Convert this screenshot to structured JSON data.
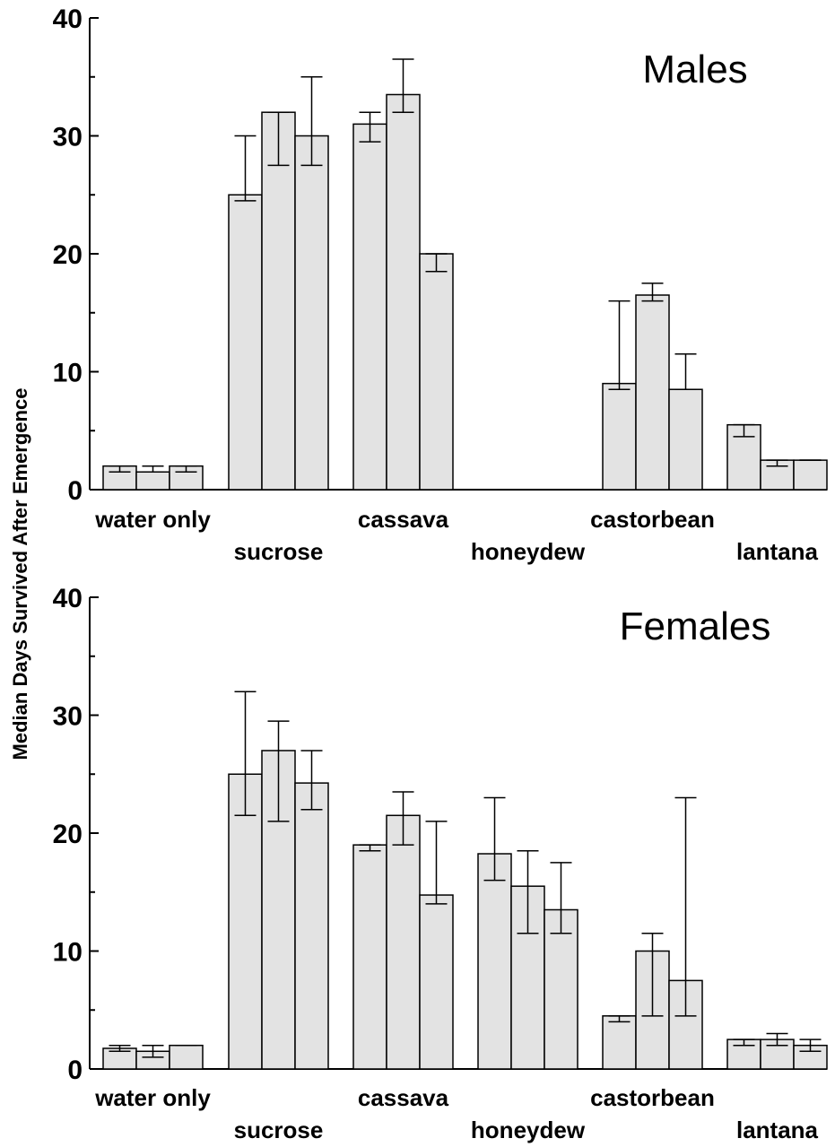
{
  "ylabel": "Median Days Survived After Emergence",
  "colors": {
    "bar_fill": "#e3e3e3",
    "outline": "#000000"
  },
  "chart_data": [
    {
      "type": "bar",
      "title": "Males",
      "ylim": [
        0,
        40
      ],
      "yticks": [
        "0",
        "10",
        "20",
        "30",
        "40"
      ],
      "categories": [
        "water only",
        "sucrose",
        "cassava",
        "honeydew",
        "castorbean",
        "lantana"
      ],
      "bars_per_category": 3,
      "values": [
        [
          2.0,
          1.5,
          2.0
        ],
        [
          25,
          32,
          30
        ],
        [
          31,
          33.5,
          20
        ],
        [
          null,
          null,
          null
        ],
        [
          9,
          16.5,
          8.5
        ],
        [
          5.5,
          2.5,
          2.5
        ]
      ],
      "error_low": [
        [
          1.5,
          1.5,
          1.5
        ],
        [
          24.5,
          27.5,
          27.5
        ],
        [
          29.5,
          32,
          18.5
        ],
        [
          null,
          null,
          null
        ],
        [
          8.5,
          16,
          8.5
        ],
        [
          4.5,
          2,
          2.5
        ]
      ],
      "error_high": [
        [
          2.0,
          2.0,
          2.0
        ],
        [
          30,
          32,
          35
        ],
        [
          32,
          36.5,
          20
        ],
        [
          null,
          null,
          null
        ],
        [
          16,
          17.5,
          11.5
        ],
        [
          5.5,
          2.5,
          2.5
        ]
      ]
    },
    {
      "type": "bar",
      "title": "Females",
      "ylim": [
        0,
        40
      ],
      "yticks": [
        "0",
        "10",
        "20",
        "30",
        "40"
      ],
      "categories": [
        "water only",
        "sucrose",
        "cassava",
        "honeydew",
        "castorbean",
        "lantana"
      ],
      "bars_per_category": 3,
      "values": [
        [
          1.75,
          1.5,
          2.0
        ],
        [
          25,
          27,
          24.25
        ],
        [
          19,
          21.5,
          14.75
        ],
        [
          18.25,
          15.5,
          13.5
        ],
        [
          4.5,
          10,
          7.5
        ],
        [
          2.5,
          2.5,
          2.0
        ]
      ],
      "error_low": [
        [
          1.5,
          1.0,
          2.0
        ],
        [
          21.5,
          21,
          22
        ],
        [
          18.5,
          19,
          14
        ],
        [
          16,
          11.5,
          11.5
        ],
        [
          4,
          4.5,
          4.5
        ],
        [
          2.0,
          2.0,
          1.5
        ]
      ],
      "error_high": [
        [
          2.0,
          2.0,
          2.0
        ],
        [
          32,
          29.5,
          27
        ],
        [
          19,
          23.5,
          21
        ],
        [
          23,
          18.5,
          17.5
        ],
        [
          4.5,
          11.5,
          23
        ],
        [
          2.5,
          3.0,
          2.5
        ]
      ]
    }
  ]
}
